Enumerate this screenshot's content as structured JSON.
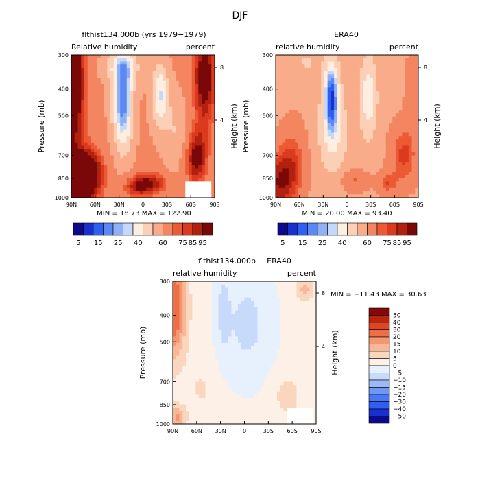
{
  "page": {
    "title": "DJF"
  },
  "colors": {
    "rh_palette": [
      "#0a0a8a",
      "#1a2fd0",
      "#2f5ff2",
      "#5a88f4",
      "#8fb0f6",
      "#c4d8fa",
      "#fdeee2",
      "#fbd0b6",
      "#f8ac8a",
      "#f38660",
      "#ec5a35",
      "#dc3a1f",
      "#b22010",
      "#7a0808"
    ],
    "diff_palette": [
      "#0a0a8a",
      "#1a2fd0",
      "#2f5ff2",
      "#4a78f4",
      "#7096f4",
      "#9cb8f6",
      "#c8dafb",
      "#e7f0fd",
      "#fdf0e6",
      "#fbd6bf",
      "#f8b898",
      "#f49670",
      "#ee6e45",
      "#e04624",
      "#bc2410",
      "#880808"
    ]
  },
  "chart_data": [
    {
      "type": "heatmap",
      "title": "flthist134.000b (yrs 1979−1979)",
      "subtitle_left": "Relative humidity",
      "subtitle_right": "percent",
      "ylabel": "Pressure (mb)",
      "ylabel_right": "Height (km)",
      "xticks": [
        "90N",
        "60N",
        "30N",
        "0",
        "30S",
        "60S",
        "90S"
      ],
      "yticks": [
        "300",
        "400",
        "500",
        "700",
        "850",
        "1000"
      ],
      "yticks_right": [
        "8",
        "4"
      ],
      "ylim": [
        1000,
        300
      ],
      "stats": "MIN =   18.73   MAX =  122.90",
      "colorbar_labels": [
        "5",
        "15",
        "25",
        "40",
        "60",
        "75",
        "85",
        "95"
      ]
    },
    {
      "type": "heatmap",
      "title": "ERA40",
      "subtitle_left": "relative humidity",
      "subtitle_right": "percent",
      "ylabel": "Pressure (mb)",
      "ylabel_right": "Height (km)",
      "xticks": [
        "90N",
        "60N",
        "30N",
        "0",
        "30S",
        "60S",
        "90S"
      ],
      "yticks": [
        "300",
        "400",
        "500",
        "700",
        "850",
        "1000"
      ],
      "yticks_right": [
        "8",
        "4"
      ],
      "ylim": [
        1000,
        300
      ],
      "stats": "MIN =   20.00   MAX =   93.40",
      "colorbar_labels": [
        "5",
        "15",
        "25",
        "40",
        "60",
        "75",
        "85",
        "95"
      ]
    },
    {
      "type": "heatmap",
      "title": "flthist134.000b − ERA40",
      "subtitle_left": "relative humidity",
      "subtitle_right": "percent",
      "ylabel": "Pressure (mb)",
      "ylabel_right": "Height (km)",
      "xticks": [
        "90N",
        "60N",
        "30N",
        "0",
        "30S",
        "60S",
        "90S"
      ],
      "yticks": [
        "300",
        "400",
        "500",
        "700",
        "850",
        "1000"
      ],
      "yticks_right": [
        "8",
        "4"
      ],
      "ylim": [
        1000,
        300
      ],
      "stats": "MIN =  −11.43   MAX =   30.63",
      "colorbar_labels": [
        "50",
        "40",
        "30",
        "20",
        "15",
        "10",
        "5",
        "0",
        "−5",
        "−10",
        "−15",
        "−20",
        "−30",
        "−40",
        "−50"
      ]
    }
  ]
}
